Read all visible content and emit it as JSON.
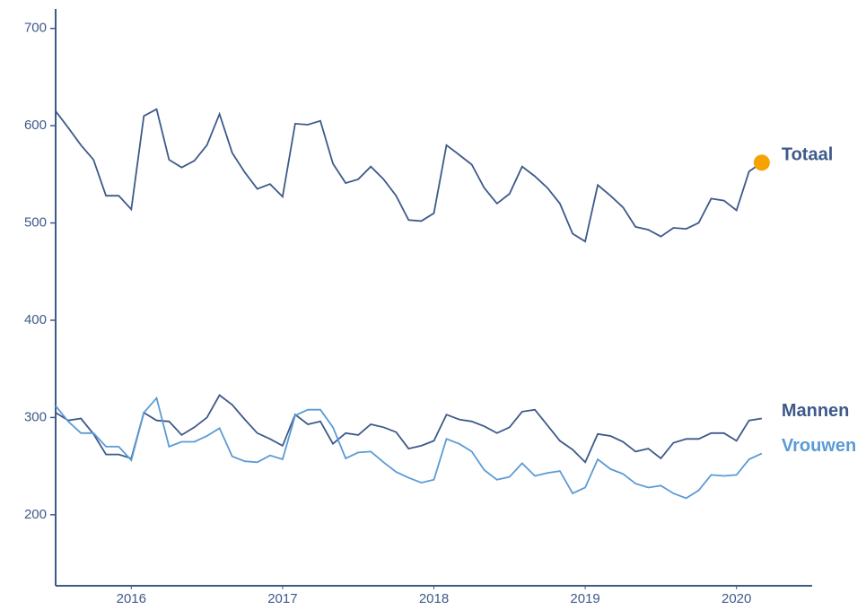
{
  "chart_data": {
    "type": "line",
    "x": [
      2015.5,
      2015.583,
      2015.667,
      2015.75,
      2015.833,
      2015.917,
      2016,
      2016.083,
      2016.167,
      2016.25,
      2016.333,
      2016.417,
      2016.5,
      2016.583,
      2016.667,
      2016.75,
      2016.833,
      2016.917,
      2017,
      2017.083,
      2017.167,
      2017.25,
      2017.333,
      2017.417,
      2017.5,
      2017.583,
      2017.667,
      2017.75,
      2017.833,
      2017.917,
      2018,
      2018.083,
      2018.167,
      2018.25,
      2018.333,
      2018.417,
      2018.5,
      2018.583,
      2018.667,
      2018.75,
      2018.833,
      2018.917,
      2019,
      2019.083,
      2019.167,
      2019.25,
      2019.333,
      2019.417,
      2019.5,
      2019.583,
      2019.667,
      2019.75,
      2019.833,
      2019.917,
      2020,
      2020.083,
      2020.167
    ],
    "series": [
      {
        "name": "Totaal",
        "color": "#3d5a8a",
        "values": [
          615,
          598,
          580,
          565,
          528,
          528,
          514,
          610,
          617,
          565,
          557,
          564,
          580,
          612,
          572,
          552,
          535,
          540,
          527,
          602,
          601,
          605,
          561,
          541,
          545,
          558,
          545,
          528,
          503,
          502,
          510,
          580,
          570,
          560,
          536,
          520,
          530,
          558,
          548,
          536,
          520,
          489,
          481,
          539,
          528,
          516,
          496,
          493,
          486,
          495,
          494,
          500,
          525,
          523,
          513,
          553,
          562
        ]
      },
      {
        "name": "Mannen",
        "color": "#3d5a8a",
        "values": [
          305,
          297,
          299,
          283,
          262,
          262,
          258,
          305,
          297,
          296,
          282,
          290,
          300,
          323,
          313,
          298,
          284,
          278,
          271,
          303,
          293,
          296,
          273,
          284,
          282,
          293,
          290,
          285,
          268,
          271,
          276,
          303,
          298,
          296,
          291,
          284,
          290,
          306,
          308,
          292,
          276,
          267,
          254,
          283,
          281,
          275,
          265,
          268,
          258,
          274,
          278,
          278,
          284,
          284,
          276,
          297,
          299
        ]
      },
      {
        "name": "Vrouwen",
        "color": "#5b9bd5",
        "values": [
          312,
          296,
          284,
          284,
          270,
          270,
          256,
          305,
          320,
          270,
          275,
          275,
          281,
          289,
          260,
          255,
          254,
          261,
          257,
          302,
          308,
          308,
          290,
          258,
          264,
          265,
          254,
          244,
          238,
          233,
          236,
          278,
          273,
          265,
          246,
          236,
          239,
          253,
          240,
          243,
          245,
          222,
          228,
          257,
          247,
          242,
          232,
          228,
          230,
          222,
          217,
          225,
          241,
          240,
          241,
          257,
          263
        ]
      }
    ],
    "highlight_color": "#f5a300",
    "xlim": [
      2015.5,
      2020.5
    ],
    "xticks": [
      2016,
      2017,
      2018,
      2019,
      2020
    ],
    "ylim": [
      127,
      720
    ],
    "yticks": [
      200,
      300,
      400,
      500,
      600,
      700
    ]
  }
}
